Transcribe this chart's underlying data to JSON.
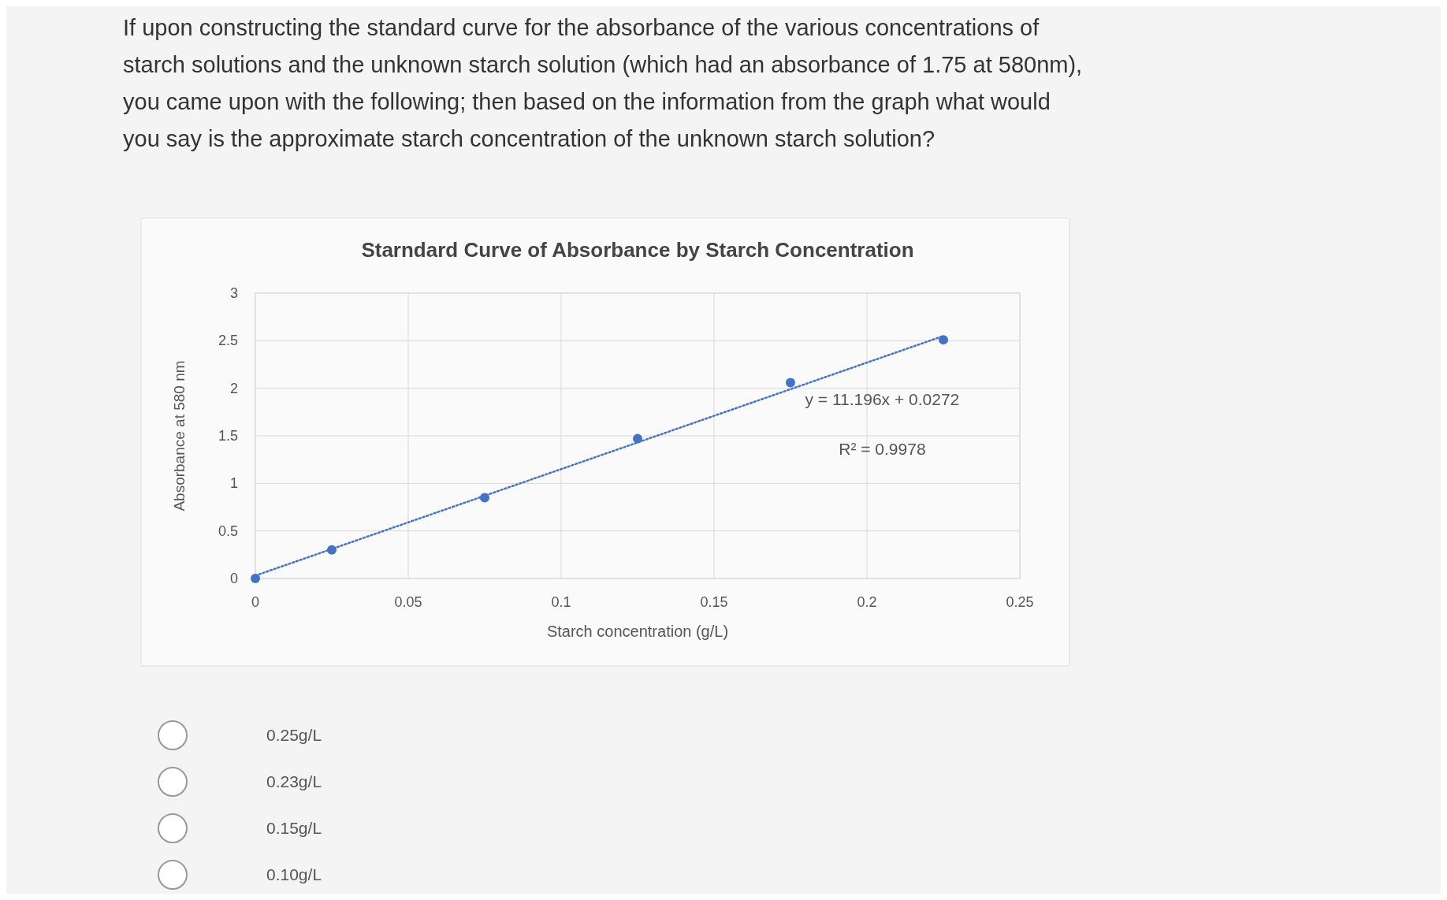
{
  "chart_data": {
    "type": "scatter",
    "title": "Starndard Curve of Absorbance by Starch Concentration",
    "xlabel": "Starch concentration (g/L)",
    "ylabel": "Absorbance at 580 nm",
    "annotations": [
      "If upon constructing the standard curve for the absorbance of the various concentrations of starch solutions and the unknown starch solution (which had an absorbance of 1.75 at 580nm), you came upon with the following; then based on the information from the graph what would you say is the approximate starch concentration of the unknown starch solution?",
      "y = 11.196x + 0.0272",
      "R² = 0.9978",
      "0.25g/L",
      "0.23g/L",
      "0.15g/L",
      "0.10g/L"
    ],
    "series": [
      {
        "color": "#4472c4",
        "x": [
          0,
          0.025,
          0.075,
          0.125,
          0.175,
          0.225
        ],
        "values": [
          0,
          0.3,
          0.85,
          1.47,
          2.06,
          2.51
        ]
      },
      {
        "type": "line",
        "marker": "none",
        "color": "#4472c4",
        "line_style": "dotted",
        "x": [
          0,
          0.225
        ],
        "values": [
          0.03,
          2.55
        ]
      }
    ],
    "xlim": [
      0,
      0.25
    ],
    "xticks": [
      0,
      0.05,
      0.1,
      0.15,
      0.2,
      0.25
    ],
    "ylim": [
      0,
      3
    ],
    "yticks": [
      0,
      0.5,
      1,
      1.5,
      2,
      2.5,
      3
    ],
    "grid": true,
    "marker": "circle"
  }
}
